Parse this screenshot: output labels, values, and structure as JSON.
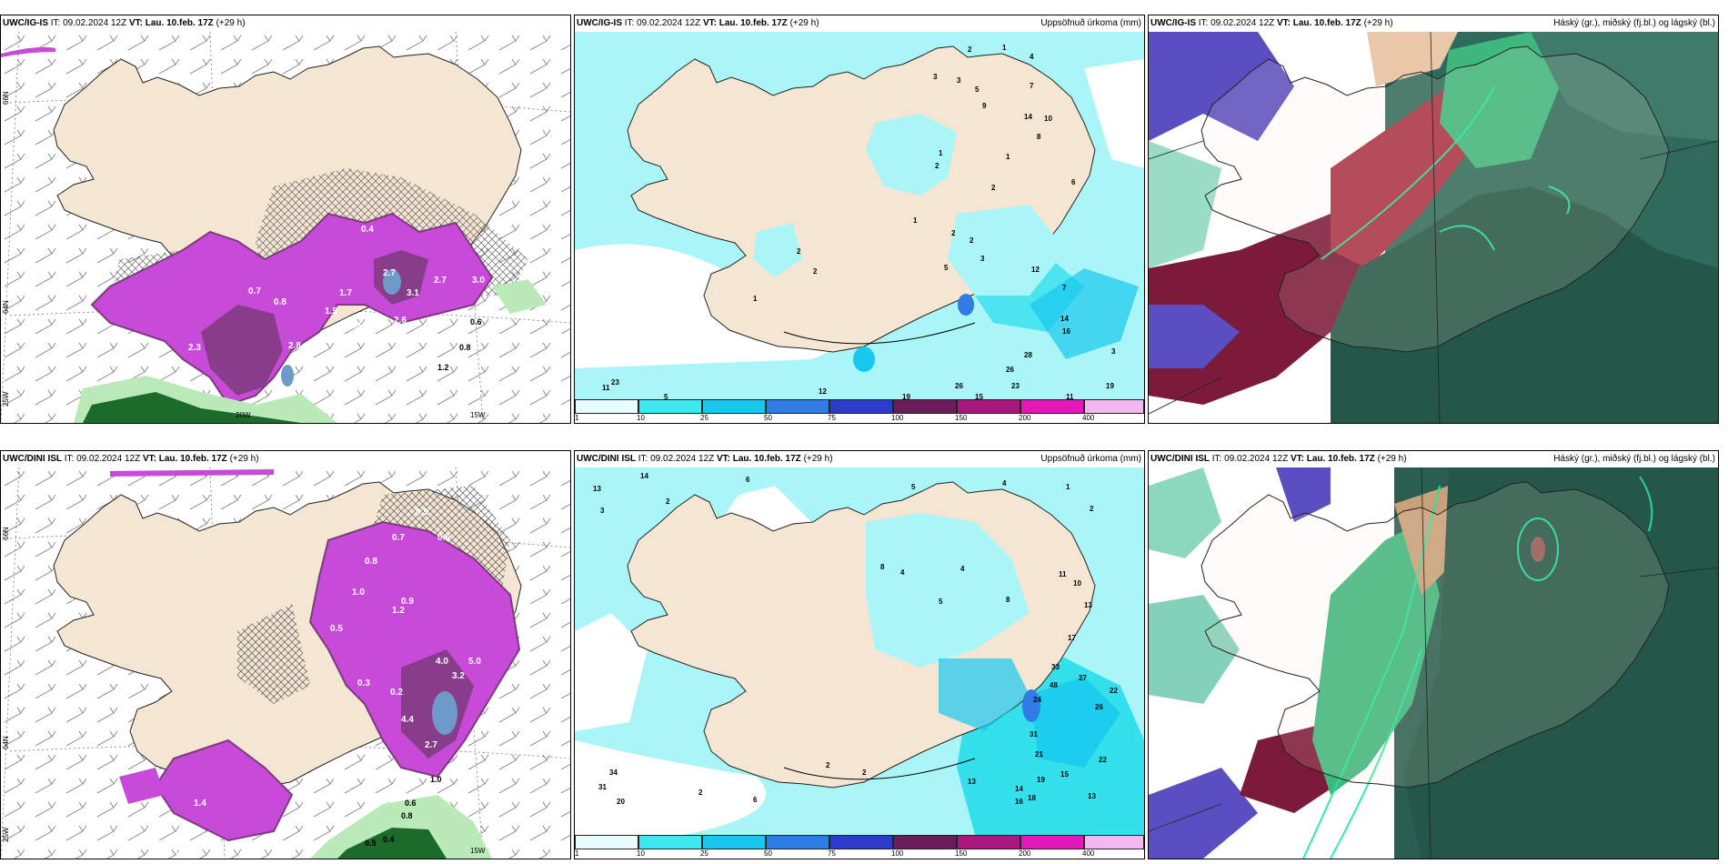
{
  "colors": {
    "land": "#f5e6d3",
    "sea": "#ffffff",
    "precip_light": "#aaf5f8",
    "precip_mid": "#34e0ec",
    "purple": "#c84ad8",
    "dark_purple": "#7b3b7c",
    "green_light": "#b9eab7",
    "green_dark": "#1c6b2a",
    "cloud_high": "#225a4d",
    "cloud_mid": "#7b1a3a",
    "cloud_low": "#5a4ec0"
  },
  "rows": [
    {
      "model": "UWC/IG-IS",
      "it_label": "IT:",
      "it_value": "09.02.2024 12Z",
      "vt_label": "VT:",
      "vt_value": "Lau. 10.feb. 17Z",
      "lead": "(+29 h)"
    },
    {
      "model": "UWC/DINI ISL",
      "it_label": "IT:",
      "it_value": "09.02.2024 12Z",
      "vt_label": "VT:",
      "vt_value": "Lau. 10.feb. 17Z",
      "lead": "(+29 h)"
    }
  ],
  "precip_title": "Uppsöfnuð úrkoma (mm)",
  "cloud_title": "Háský (gr.), miðský (fj.bl.) og lágský (bl.)",
  "grid_labels": {
    "lat66": "66N",
    "lat64": "64N",
    "lon25": "25W",
    "lon15": "15W",
    "lon20": "20W"
  },
  "colorbar": {
    "ticks": [
      "1",
      "10",
      "25",
      "50",
      "75",
      "100",
      "150",
      "200",
      "400"
    ],
    "colors": [
      "#e8fdfd",
      "#3ee8f0",
      "#18c8ee",
      "#2f7ce6",
      "#2a3cc8",
      "#6b1c5a",
      "#a8187e",
      "#e218b8",
      "#f4b8f0"
    ]
  },
  "snow_labels_top": [
    "0.4",
    "0.8",
    "0.6",
    "1.5",
    "2.3",
    "2.8",
    "2.6",
    "2.7",
    "3.0",
    "3.1",
    "1.7",
    "1.9",
    "0.9",
    "0.7",
    "3.2",
    "1.2",
    "0.8",
    "4.7",
    "2.6"
  ],
  "snow_labels_bottom": [
    "0.5",
    "0.7",
    "0.6",
    "0.8",
    "1.0",
    "1.2",
    "0.9",
    "0.5",
    "0.3",
    "0.2",
    "4.0",
    "5.0",
    "3.2",
    "4.4",
    "2.7",
    "1.4",
    "0.6",
    "1.0",
    "0.8",
    "0.4",
    "0.5"
  ],
  "precip_labels_top": [
    "2",
    "1",
    "4",
    "3",
    "3",
    "9",
    "5",
    "7",
    "14",
    "10",
    "1",
    "2",
    "1",
    "8",
    "2",
    "6",
    "1",
    "2",
    "2",
    "3",
    "5",
    "7",
    "12",
    "14",
    "16",
    "28",
    "26",
    "23",
    "19",
    "3",
    "26",
    "12",
    "11",
    "23",
    "5",
    "19",
    "15",
    "11",
    "2",
    "1",
    "2"
  ],
  "precip_labels_bottom": [
    "14",
    "13",
    "6",
    "5",
    "3",
    "2",
    "1",
    "4",
    "6",
    "4",
    "8",
    "11",
    "10",
    "13",
    "17",
    "21",
    "33",
    "48",
    "24",
    "27",
    "22",
    "26",
    "31",
    "21",
    "22",
    "19",
    "15",
    "13",
    "14",
    "16",
    "18",
    "34",
    "31",
    "20",
    "2",
    "4",
    "2",
    "6",
    "8",
    "5"
  ]
}
